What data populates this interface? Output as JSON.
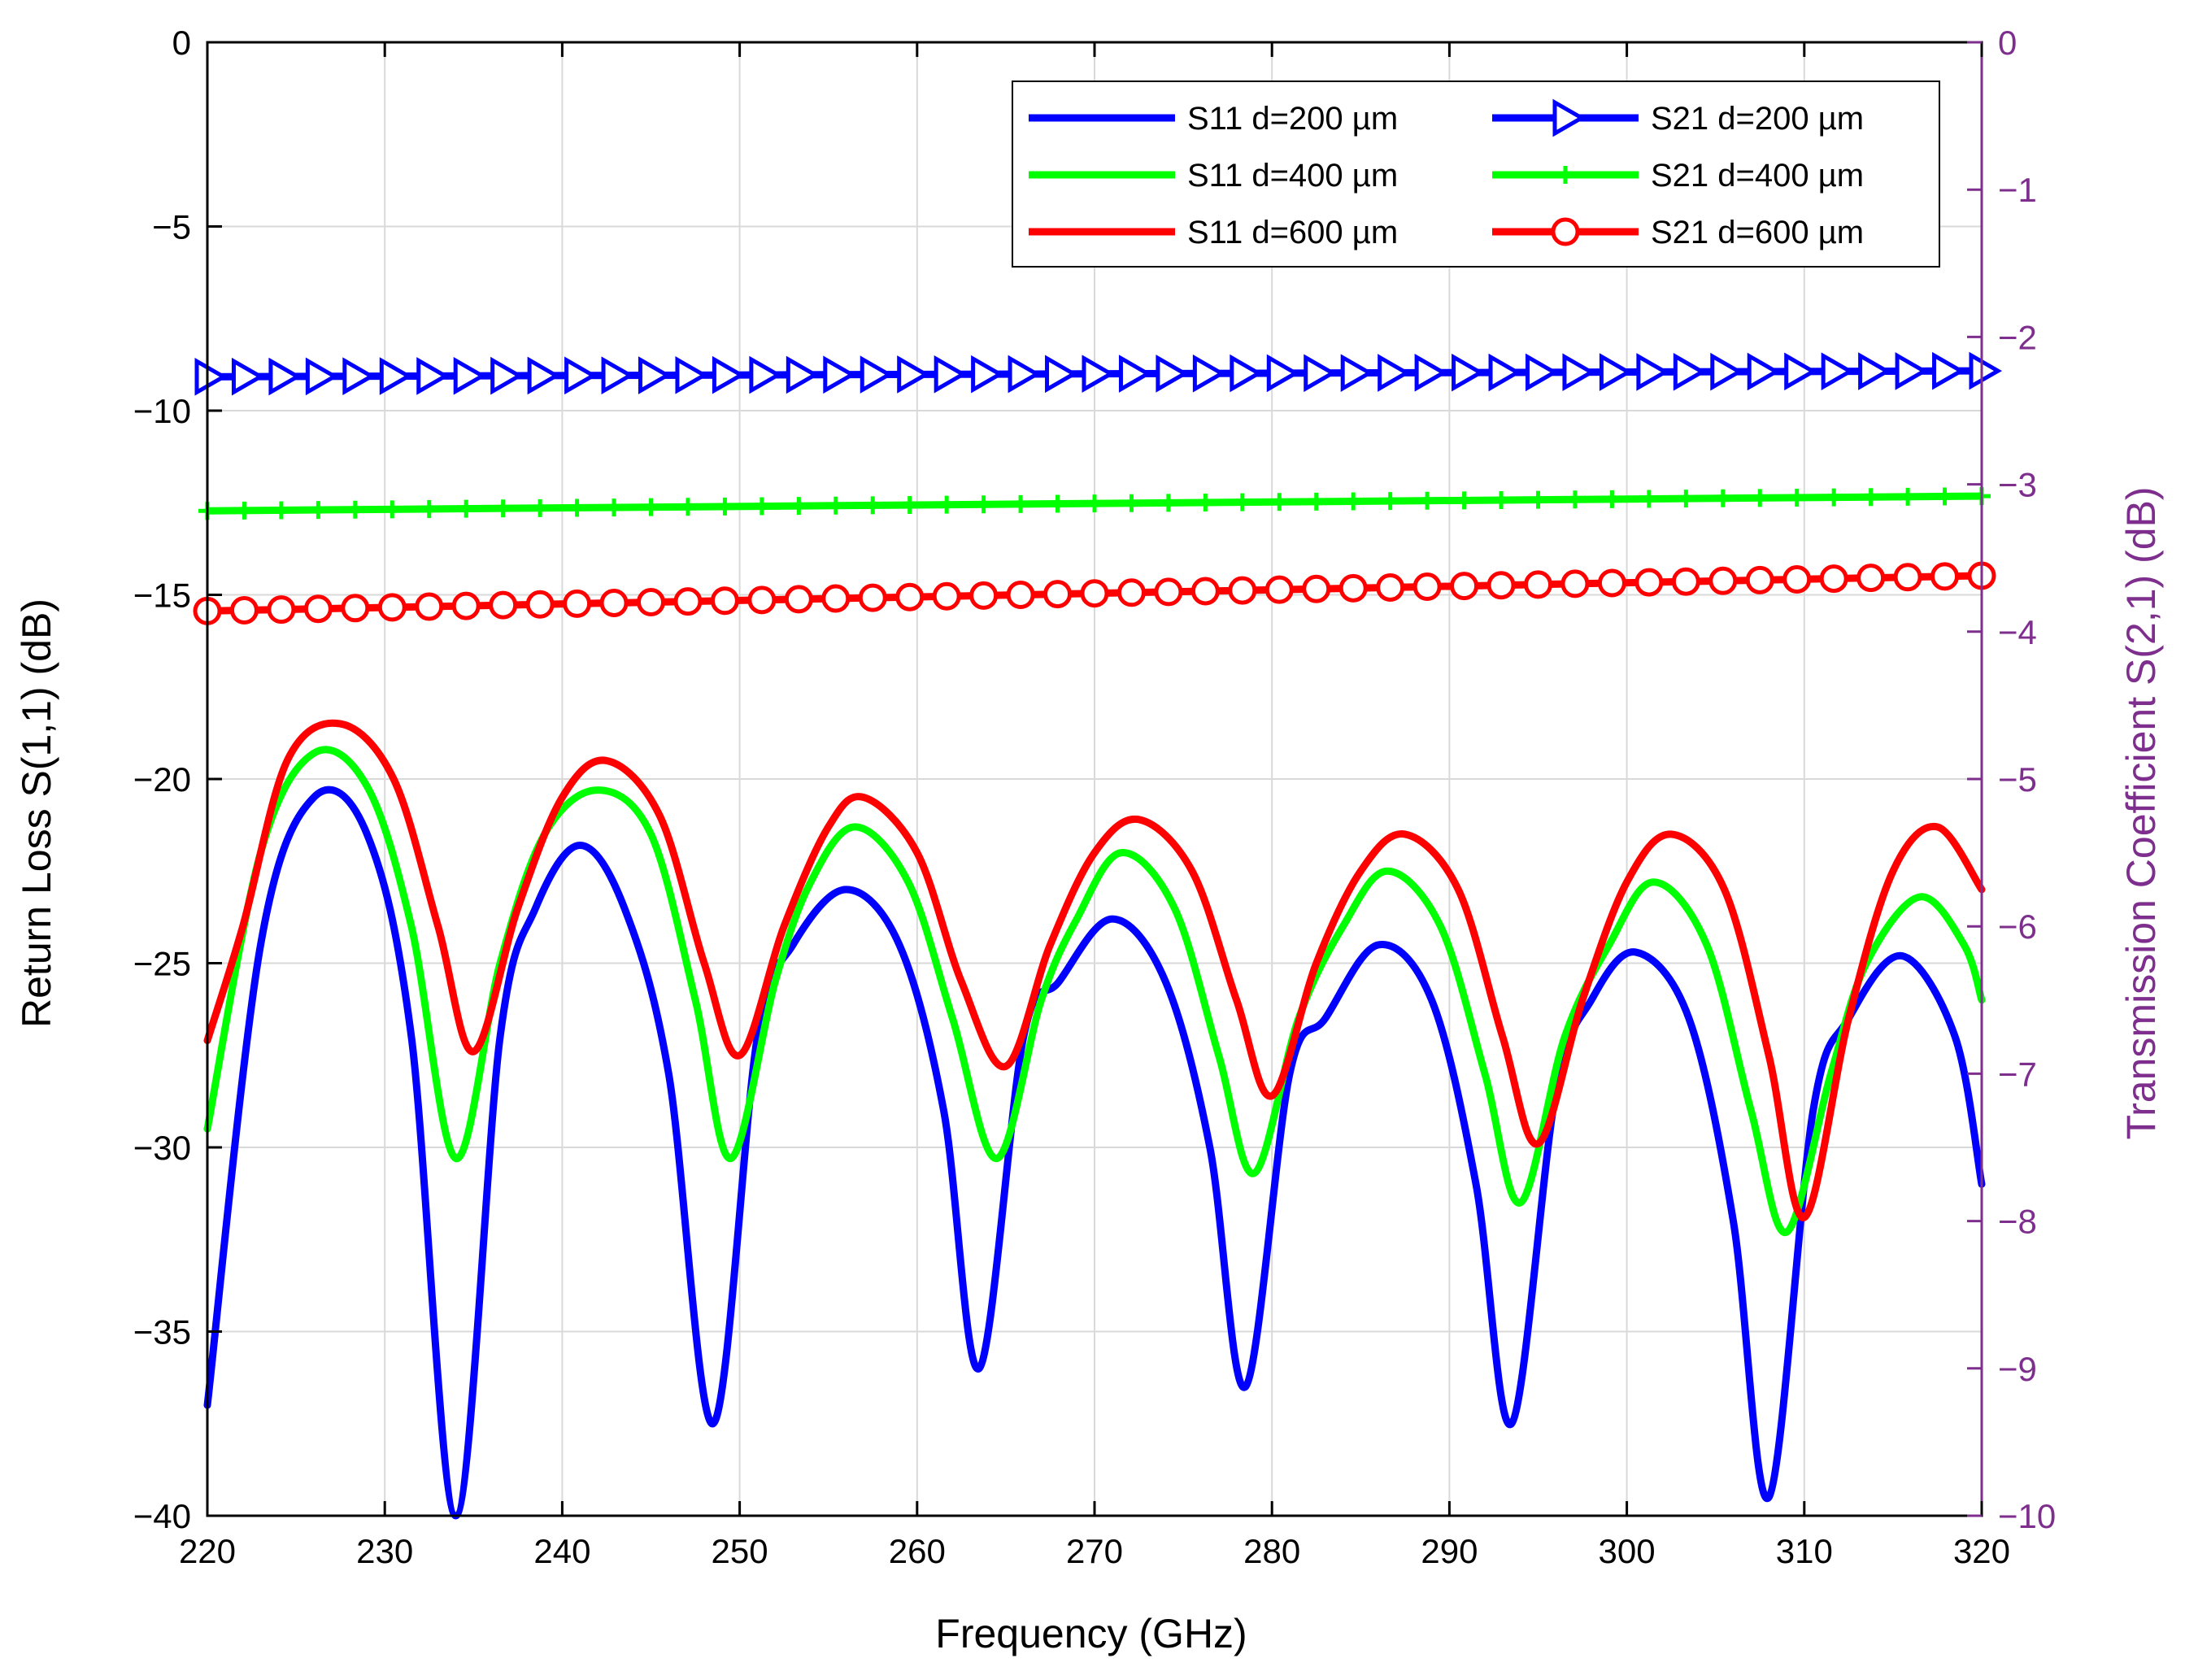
{
  "chart_data": {
    "type": "line",
    "title": "",
    "xlabel": "Frequency (GHz)",
    "ylabel": "Return Loss S(1,1) (dB)",
    "ylabel_right": "Transmission Coefficient S(2,1) (dB)",
    "xlim": [
      220,
      320
    ],
    "ylim": [
      -40,
      0
    ],
    "ylim_right": [
      -10,
      0
    ],
    "xticks": [
      220,
      230,
      240,
      250,
      260,
      270,
      280,
      290,
      300,
      310,
      320
    ],
    "yticks": [
      0,
      -5,
      -10,
      -15,
      -20,
      -25,
      -30,
      -35,
      -40
    ],
    "yticks_right": [
      0,
      -1,
      -2,
      -3,
      -4,
      -5,
      -6,
      -7,
      -8,
      -9,
      -10
    ],
    "grid": true,
    "legend_position": "top-right",
    "colors": {
      "blue": "#0000ff",
      "green": "#00ff00",
      "red": "#ff0000",
      "right_axis": "#7e2f8e"
    },
    "series": [
      {
        "name": "S11 d=200 µm",
        "axis": "left",
        "color": "#0000ff",
        "marker": "none",
        "x": [
          220,
          223,
          226,
          229,
          231.5,
          234,
          236.5,
          238.5,
          241,
          243.5,
          246,
          248.5,
          251,
          253,
          256,
          259,
          261.5,
          263.5,
          266,
          268,
          271,
          274,
          276.5,
          278.5,
          281,
          283,
          286,
          289,
          291.5,
          293.5,
          296,
          298,
          300.5,
          303.5,
          306,
          308,
          310.5,
          312.5,
          315.5,
          318.5,
          320
        ],
        "values": [
          -37,
          -24.5,
          -20.5,
          -21.5,
          -27,
          -40,
          -27,
          -23.5,
          -21.8,
          -23.5,
          -28,
          -37.5,
          -27,
          -24.5,
          -23,
          -24.5,
          -29,
          -36,
          -27,
          -25.5,
          -23.8,
          -25.5,
          -30,
          -36.5,
          -28,
          -26.5,
          -24.5,
          -26,
          -31,
          -37.5,
          -28.5,
          -26,
          -24.7,
          -26.5,
          -32,
          -39.5,
          -29,
          -26.5,
          -24.8,
          -27,
          -31
        ]
      },
      {
        "name": "S11 d=400 µm",
        "axis": "left",
        "color": "#00ff00",
        "marker": "none",
        "x": [
          220,
          223,
          226,
          229,
          231.5,
          234,
          236.5,
          239,
          242,
          245,
          247.5,
          249.5,
          252,
          254,
          256.5,
          259.5,
          262,
          264.5,
          267,
          269,
          271.5,
          274.5,
          277,
          279,
          281.5,
          284,
          286.5,
          289.5,
          292,
          294,
          296.5,
          299,
          301.5,
          304.5,
          307,
          309,
          311.5,
          313.5,
          316.5,
          319,
          320
        ],
        "values": [
          -29.5,
          -22,
          -19.3,
          -20.2,
          -24,
          -30.3,
          -25,
          -21.5,
          -20.3,
          -21.5,
          -26,
          -30.3,
          -25.5,
          -22.8,
          -21.3,
          -22.8,
          -26.5,
          -30.3,
          -26,
          -23.8,
          -22,
          -23.5,
          -27.5,
          -30.7,
          -26.5,
          -24,
          -22.5,
          -24,
          -28,
          -31.5,
          -27,
          -24.5,
          -22.8,
          -24.5,
          -29,
          -32.3,
          -28,
          -25,
          -23.2,
          -24.5,
          -26
        ]
      },
      {
        "name": "S11 d=600 µm",
        "axis": "left",
        "color": "#ff0000",
        "marker": "none",
        "x": [
          220,
          222,
          224.5,
          227.5,
          230.5,
          233,
          235,
          237.5,
          240,
          242.5,
          245.5,
          248,
          250,
          252.5,
          255,
          257,
          260,
          262.5,
          265,
          267.5,
          270,
          272.5,
          275.5,
          278,
          280,
          282.5,
          285,
          287.5,
          290.5,
          293,
          295,
          297.5,
          300,
          302.5,
          305.5,
          308,
          310,
          312.5,
          315,
          317.5,
          320
        ],
        "values": [
          -27.1,
          -24,
          -19.5,
          -18.5,
          -20,
          -24,
          -27.4,
          -23.5,
          -20.5,
          -19.5,
          -21,
          -25,
          -27.5,
          -24,
          -21.3,
          -20.5,
          -22,
          -25.5,
          -27.8,
          -24.5,
          -22,
          -21.1,
          -22.5,
          -26,
          -28.6,
          -25,
          -22.5,
          -21.5,
          -23,
          -27,
          -29.9,
          -26,
          -22.8,
          -21.5,
          -23,
          -27.5,
          -31.9,
          -26.5,
          -22.5,
          -21.3,
          -23
        ]
      },
      {
        "name": "S21 d=200 µm",
        "axis": "right",
        "color": "#0000ff",
        "marker": "triangle-right",
        "x": [
          220,
          320
        ],
        "values": [
          -2.27,
          -2.23
        ]
      },
      {
        "name": "S21 d=400 µm",
        "axis": "right",
        "color": "#00ff00",
        "marker": "plus",
        "x": [
          220,
          320
        ],
        "values": [
          -3.18,
          -3.08
        ]
      },
      {
        "name": "S21 d=600 µm",
        "axis": "right",
        "color": "#ff0000",
        "marker": "circle",
        "x": [
          220,
          320
        ],
        "values": [
          -3.86,
          -3.62
        ]
      }
    ]
  }
}
